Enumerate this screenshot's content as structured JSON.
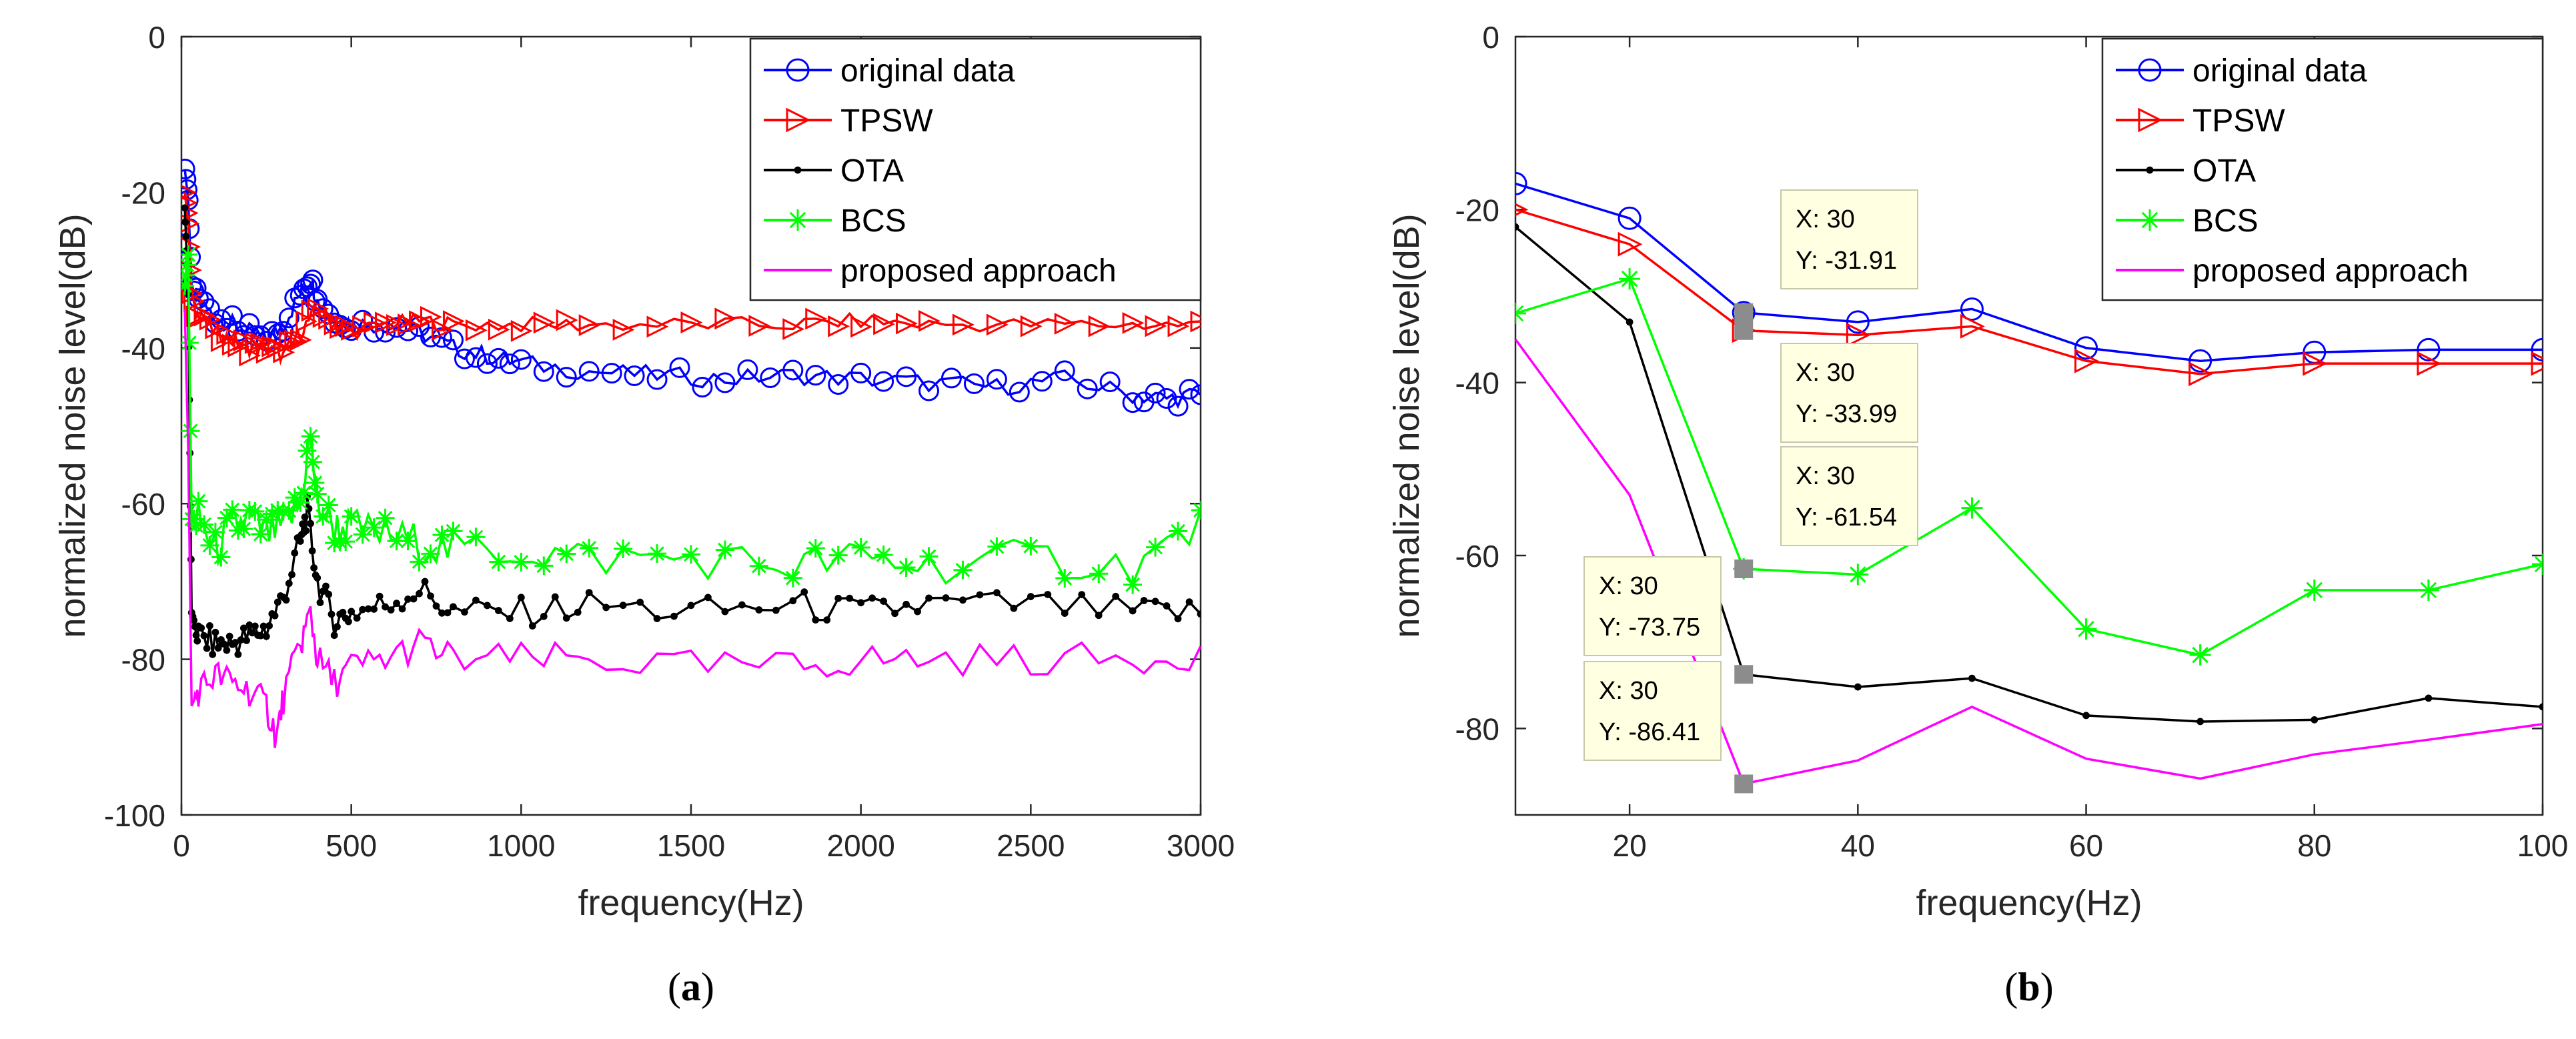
{
  "chart_data": [
    {
      "type": "line",
      "panel_label": "a",
      "xlabel": "frequency(Hz)",
      "ylabel": "normalized noise level(dB)",
      "xlim": [
        0,
        3000
      ],
      "ylim": [
        -100,
        0
      ],
      "xticks": [
        "0",
        "500",
        "1000",
        "1500",
        "2000",
        "2500",
        "3000"
      ],
      "yticks": [
        "0",
        "-20",
        "-40",
        "-60",
        "-80",
        "-100"
      ],
      "legend_position": "top-right",
      "series": [
        {
          "name": "original data",
          "color": "#0000ff",
          "marker": "circle",
          "x": [
            10,
            20,
            30,
            50,
            100,
            150,
            200,
            250,
            300,
            350,
            380,
            400,
            450,
            500,
            600,
            700,
            800,
            900,
            1000,
            1200,
            1400,
            1600,
            1800,
            2000,
            2200,
            2400,
            2600,
            2800,
            2900,
            3000
          ],
          "y": [
            -17,
            -21,
            -32,
            -34,
            -36,
            -37,
            -38,
            -39,
            -37,
            -33,
            -31,
            -34,
            -36,
            -37,
            -37,
            -38,
            -40,
            -41,
            -42,
            -43,
            -43.5,
            -44,
            -43.5,
            -44,
            -44.5,
            -45,
            -44,
            -46,
            -46.5,
            -46
          ]
        },
        {
          "name": "TPSW",
          "color": "#ff0000",
          "marker": "triangle-right",
          "x": [
            10,
            20,
            30,
            50,
            100,
            150,
            200,
            250,
            300,
            350,
            400,
            450,
            500,
            600,
            700,
            800,
            1000,
            1200,
            1500,
            1800,
            2000,
            2200,
            2500,
            2800,
            3000
          ],
          "y": [
            -20,
            -24,
            -33,
            -36,
            -38,
            -39,
            -40,
            -40,
            -41,
            -38,
            -35,
            -37,
            -38,
            -37,
            -36.5,
            -37,
            -37,
            -37,
            -37,
            -37,
            -36.5,
            -37,
            -37,
            -37,
            -37
          ]
        },
        {
          "name": "OTA",
          "color": "#000000",
          "marker": "dot",
          "x": [
            10,
            20,
            30,
            50,
            100,
            150,
            200,
            250,
            300,
            350,
            370,
            400,
            450,
            500,
            600,
            700,
            800,
            1000,
            1200,
            1500,
            1800,
            2000,
            2200,
            2500,
            2800,
            3000
          ],
          "y": [
            -22,
            -33,
            -74,
            -77,
            -78,
            -78,
            -77,
            -76,
            -72,
            -65,
            -61,
            -70,
            -75,
            -74,
            -73,
            -71,
            -74,
            -74,
            -73,
            -74,
            -73,
            -74,
            -73,
            -73,
            -74,
            -74
          ]
        },
        {
          "name": "BCS",
          "color": "#00ff00",
          "marker": "star",
          "x": [
            10,
            20,
            30,
            50,
            100,
            150,
            200,
            250,
            300,
            350,
            380,
            400,
            450,
            500,
            600,
            700,
            800,
            1000,
            1200,
            1500,
            1800,
            2000,
            2200,
            2500,
            2800,
            3000
          ],
          "y": [
            -32,
            -28,
            -62,
            -62,
            -66,
            -63,
            -62,
            -64,
            -63,
            -60,
            -51,
            -60,
            -63,
            -63,
            -64,
            -65,
            -66,
            -66,
            -67,
            -67,
            -68,
            -67,
            -68,
            -67,
            -68,
            -63
          ]
        },
        {
          "name": "proposed approach",
          "color": "#ff00ff",
          "marker": "none",
          "x": [
            10,
            20,
            30,
            50,
            100,
            150,
            200,
            250,
            280,
            300,
            350,
            380,
            400,
            450,
            500,
            600,
            700,
            800,
            1000,
            1200,
            1500,
            1800,
            2000,
            2200,
            2500,
            2800,
            3000
          ],
          "y": [
            -35,
            -53,
            -86,
            -84,
            -82,
            -83,
            -84,
            -86,
            -90,
            -85,
            -78,
            -74,
            -80,
            -83,
            -81,
            -80,
            -78,
            -80,
            -80,
            -80,
            -81,
            -81,
            -80,
            -80,
            -80,
            -80,
            -79
          ]
        }
      ]
    },
    {
      "type": "line",
      "panel_label": "b",
      "xlabel": "frequency(Hz)",
      "ylabel": "normalized noise level(dB)",
      "xlim": [
        10,
        100
      ],
      "ylim": [
        -90,
        0
      ],
      "xticks": [
        "20",
        "40",
        "60",
        "80",
        "100"
      ],
      "yticks": [
        "0",
        "-20",
        "-40",
        "-60",
        "-80"
      ],
      "legend_position": "top-right",
      "series": [
        {
          "name": "original data",
          "color": "#0000ff",
          "marker": "circle",
          "x": [
            10,
            20,
            30,
            40,
            50,
            60,
            70,
            80,
            90,
            100
          ],
          "y": [
            -17,
            -21,
            -31.91,
            -33,
            -31.5,
            -36,
            -37.5,
            -36.5,
            -36.2,
            -36.2
          ]
        },
        {
          "name": "TPSW",
          "color": "#ff0000",
          "marker": "triangle-right",
          "x": [
            10,
            20,
            30,
            40,
            50,
            60,
            70,
            80,
            90,
            100
          ],
          "y": [
            -20,
            -24,
            -33.99,
            -34.5,
            -33.5,
            -37.5,
            -39,
            -37.8,
            -37.8,
            -37.8
          ]
        },
        {
          "name": "OTA",
          "color": "#000000",
          "marker": "dot",
          "x": [
            10,
            20,
            30,
            40,
            50,
            60,
            70,
            80,
            90,
            100
          ],
          "y": [
            -22,
            -33,
            -73.75,
            -75.2,
            -74.2,
            -78.5,
            -79.2,
            -79,
            -76.5,
            -77.5
          ]
        },
        {
          "name": "BCS",
          "color": "#00ff00",
          "marker": "star",
          "x": [
            10,
            20,
            30,
            40,
            50,
            60,
            70,
            80,
            90,
            100
          ],
          "y": [
            -32,
            -28,
            -61.54,
            -62.2,
            -54.5,
            -68.5,
            -71.5,
            -64,
            -64,
            -61
          ]
        },
        {
          "name": "proposed approach",
          "color": "#ff00ff",
          "marker": "none",
          "x": [
            10,
            20,
            30,
            40,
            50,
            60,
            70,
            80,
            90,
            100
          ],
          "y": [
            -35,
            -53,
            -86.41,
            -83.7,
            -77.5,
            -83.5,
            -85.8,
            -83,
            -81.3,
            -79.5
          ]
        }
      ],
      "datatips": [
        {
          "x_label": "X: 30",
          "y_label": "Y: -31.91",
          "x": 30,
          "y": -31.91
        },
        {
          "x_label": "X: 30",
          "y_label": "Y: -33.99",
          "x": 30,
          "y": -33.99
        },
        {
          "x_label": "X: 30",
          "y_label": "Y: -61.54",
          "x": 30,
          "y": -61.54
        },
        {
          "x_label": "X: 30",
          "y_label": "Y: -73.75",
          "x": 30,
          "y": -73.75
        },
        {
          "x_label": "X: 30",
          "y_label": "Y: -86.41",
          "x": 30,
          "y": -86.41
        }
      ]
    }
  ]
}
